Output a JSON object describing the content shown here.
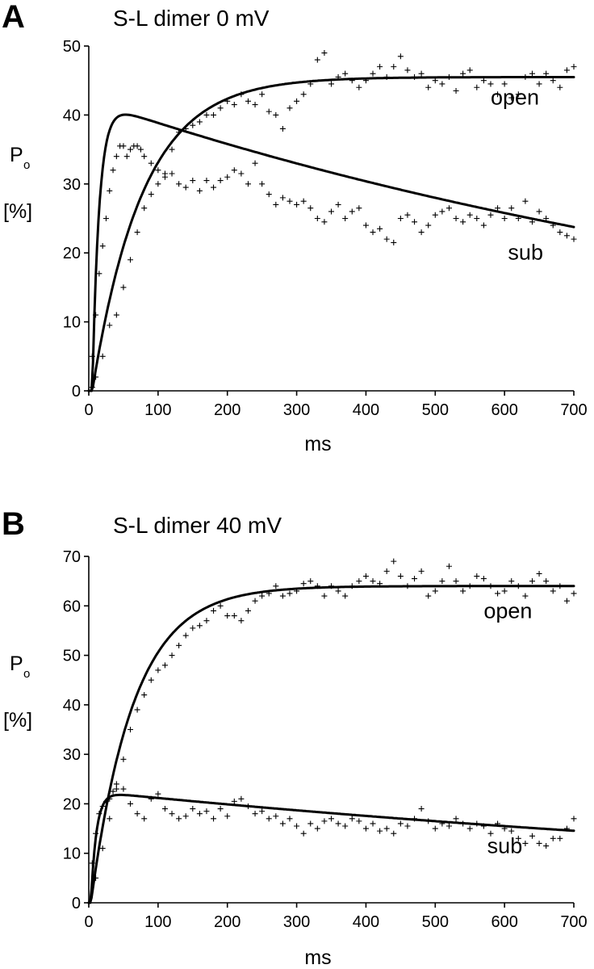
{
  "chart_data": [
    {
      "panel": "A",
      "type": "scatter",
      "title": "S-L dimer  0 mV",
      "xlabel": "ms",
      "ylabel_main": "P",
      "ylabel_sub": "o",
      "ylabel_unit": "[%]",
      "xlim": [
        0,
        700
      ],
      "ylim": [
        0,
        50
      ],
      "xticks": [
        0,
        100,
        200,
        300,
        400,
        500,
        600,
        700
      ],
      "yticks": [
        0,
        10,
        20,
        30,
        40,
        50
      ],
      "series": [
        {
          "name": "open",
          "label_pos": [
            580,
            41.5
          ],
          "fit": {
            "A": 45.5,
            "tau_rise": 73,
            "delay": 5
          },
          "x": [
            0,
            5,
            10,
            20,
            30,
            40,
            50,
            60,
            70,
            80,
            90,
            100,
            110,
            120,
            130,
            140,
            150,
            160,
            170,
            180,
            190,
            200,
            210,
            220,
            230,
            240,
            250,
            260,
            270,
            280,
            290,
            300,
            310,
            320,
            330,
            340,
            350,
            360,
            370,
            380,
            390,
            400,
            410,
            420,
            430,
            440,
            450,
            460,
            470,
            480,
            490,
            500,
            510,
            520,
            530,
            540,
            550,
            560,
            570,
            580,
            590,
            600,
            610,
            620,
            630,
            640,
            650,
            660,
            670,
            680,
            690,
            700
          ],
          "y": [
            0,
            0.5,
            2,
            5,
            9.5,
            11,
            15,
            19,
            23,
            26.5,
            28.5,
            30,
            31.5,
            35,
            37.5,
            38,
            38.5,
            39,
            40,
            40,
            41,
            42,
            41.5,
            43,
            42,
            41.5,
            43,
            40.5,
            40,
            38,
            41,
            42,
            43,
            44.5,
            48,
            49,
            44.5,
            45.5,
            46,
            45,
            44,
            45,
            46,
            47,
            45.5,
            47,
            48.5,
            46.5,
            45.5,
            46,
            44,
            45,
            44.5,
            45.5,
            43.5,
            46,
            46.5,
            44,
            45,
            44.5,
            43,
            44.5,
            42.5,
            43,
            45.5,
            46,
            44.5,
            46,
            45,
            44,
            46.5,
            47
          ]
        },
        {
          "name": "sub",
          "label_pos": [
            605,
            19
          ],
          "fit": {
            "A": 42,
            "tau_rise": 10,
            "tau_decay": 1220,
            "delay": 5
          },
          "x": [
            0,
            5,
            10,
            15,
            20,
            25,
            30,
            35,
            40,
            45,
            50,
            55,
            60,
            65,
            70,
            75,
            80,
            90,
            100,
            110,
            120,
            130,
            140,
            150,
            160,
            170,
            180,
            190,
            200,
            210,
            220,
            230,
            240,
            250,
            260,
            270,
            280,
            290,
            300,
            310,
            320,
            330,
            340,
            350,
            360,
            370,
            380,
            390,
            400,
            410,
            420,
            430,
            440,
            450,
            460,
            470,
            480,
            490,
            500,
            510,
            520,
            530,
            540,
            550,
            560,
            570,
            580,
            590,
            600,
            610,
            620,
            630,
            640,
            650,
            660,
            670,
            680,
            690,
            700
          ],
          "y": [
            0,
            5,
            11,
            17,
            21,
            25,
            29,
            32,
            34,
            35.5,
            35.5,
            34,
            35,
            35.5,
            35.5,
            35,
            34,
            33,
            32,
            31,
            31.5,
            30,
            29.5,
            30.5,
            29,
            30.5,
            29.5,
            30.5,
            31,
            32,
            31.5,
            30,
            33,
            30,
            28.5,
            27,
            28,
            27.5,
            27,
            27.5,
            26.5,
            25,
            24.5,
            26,
            27,
            25,
            26,
            26.5,
            24,
            23,
            23.5,
            22,
            21.5,
            25,
            25.5,
            24.5,
            23,
            24,
            25.5,
            26,
            26.5,
            25,
            24.5,
            25.5,
            25,
            24,
            25.5,
            26.5,
            25,
            26.5,
            25,
            27.5,
            24.5,
            26,
            25,
            24,
            23,
            22.5,
            22
          ]
        }
      ]
    },
    {
      "panel": "B",
      "type": "scatter",
      "title": "S-L dimer  40 mV",
      "xlabel": "ms",
      "ylabel_main": "P",
      "ylabel_sub": "o",
      "ylabel_unit": "[%]",
      "xlim": [
        0,
        700
      ],
      "ylim": [
        0,
        70
      ],
      "xticks": [
        0,
        100,
        200,
        300,
        400,
        500,
        600,
        700
      ],
      "yticks": [
        0,
        10,
        20,
        30,
        40,
        50,
        60,
        70
      ],
      "series": [
        {
          "name": "open",
          "label_pos": [
            570,
            57.5
          ],
          "fit": {
            "A": 64,
            "tau_rise": 62,
            "delay": 3
          },
          "x": [
            0,
            10,
            20,
            30,
            40,
            50,
            60,
            70,
            80,
            90,
            100,
            110,
            120,
            130,
            140,
            150,
            160,
            170,
            180,
            190,
            200,
            210,
            220,
            230,
            240,
            250,
            260,
            270,
            280,
            290,
            300,
            310,
            320,
            330,
            340,
            350,
            360,
            370,
            380,
            390,
            400,
            410,
            420,
            430,
            440,
            450,
            460,
            470,
            480,
            490,
            500,
            510,
            520,
            530,
            540,
            550,
            560,
            570,
            580,
            590,
            600,
            610,
            620,
            630,
            640,
            650,
            660,
            670,
            680,
            690,
            700
          ],
          "y": [
            0,
            5,
            11,
            17,
            23,
            29,
            35,
            39,
            42,
            45,
            47,
            48,
            50,
            52,
            54,
            55.5,
            56,
            57,
            59,
            60,
            58,
            58,
            57,
            59,
            61,
            62,
            62.5,
            64,
            62,
            62.5,
            63,
            64.5,
            65,
            64,
            62,
            64,
            63,
            62,
            64,
            65,
            66,
            65,
            64.5,
            67,
            69,
            66,
            64,
            65.5,
            67,
            62,
            63,
            65,
            68,
            65,
            63,
            64,
            66,
            65.5,
            64,
            62.5,
            63,
            65,
            64,
            62,
            65,
            66.5,
            65,
            63,
            64,
            61,
            62.5
          ]
        },
        {
          "name": "sub",
          "label_pos": [
            575,
            10
          ],
          "fit": {
            "A": 22.5,
            "tau_rise": 8,
            "tau_decay": 1600,
            "delay": 3
          },
          "x": [
            0,
            5,
            10,
            15,
            20,
            25,
            30,
            35,
            40,
            50,
            60,
            70,
            80,
            90,
            100,
            110,
            120,
            130,
            140,
            150,
            160,
            170,
            180,
            190,
            200,
            210,
            220,
            230,
            240,
            250,
            260,
            270,
            280,
            290,
            300,
            310,
            320,
            330,
            340,
            350,
            360,
            370,
            380,
            390,
            400,
            410,
            420,
            430,
            440,
            450,
            460,
            470,
            480,
            490,
            500,
            510,
            520,
            530,
            540,
            550,
            560,
            570,
            580,
            590,
            600,
            610,
            620,
            630,
            640,
            650,
            660,
            670,
            680,
            690,
            700
          ],
          "y": [
            0,
            8,
            14,
            18,
            19.5,
            20.5,
            21,
            22.5,
            24,
            23,
            20,
            18,
            17,
            21,
            22,
            19,
            18,
            17,
            17.5,
            19,
            18,
            18.5,
            17,
            19,
            17.5,
            20.5,
            21,
            19.5,
            18,
            18.5,
            17,
            17.5,
            16,
            17,
            15.5,
            14,
            16,
            15,
            16.5,
            17,
            16,
            15.5,
            17,
            16.5,
            15,
            16,
            14.5,
            15,
            14,
            16,
            15.5,
            17,
            19,
            16.5,
            15,
            16,
            15.5,
            17,
            16,
            15,
            16,
            15.5,
            14,
            16,
            15,
            14.5,
            13,
            12,
            13.5,
            12,
            11.5,
            13,
            13,
            15,
            17
          ]
        }
      ]
    }
  ]
}
